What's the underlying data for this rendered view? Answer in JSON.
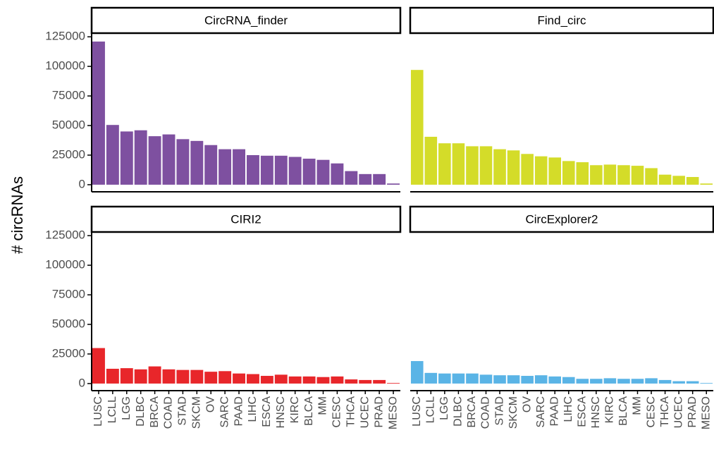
{
  "y_label": "# circRNAs",
  "categories": [
    "LUSC",
    "LCLL",
    "LGG",
    "DLBC",
    "BRCA",
    "COAD",
    "STAD",
    "SKCM",
    "OV",
    "SARC",
    "PAAD",
    "LIHC",
    "ESCA",
    "HNSC",
    "KIRC",
    "BLCA",
    "MM",
    "CESC",
    "THCA",
    "UCEC",
    "PRAD",
    "MESO"
  ],
  "ylim": [
    -6000,
    127500
  ],
  "yticks": [
    0,
    25000,
    50000,
    75000,
    100000,
    125000
  ],
  "chart_data": [
    {
      "type": "bar",
      "title": "CircRNA_finder",
      "color": "#7e50a0",
      "values": [
        121000,
        50500,
        45000,
        46000,
        41000,
        42500,
        38500,
        37000,
        33500,
        30000,
        30000,
        25000,
        24500,
        24500,
        23500,
        22000,
        21000,
        18000,
        11500,
        9000,
        9000,
        1000
      ]
    },
    {
      "type": "bar",
      "title": "Find_circ",
      "color": "#d4dc29",
      "values": [
        97000,
        40500,
        35000,
        35000,
        32500,
        32500,
        30000,
        29000,
        26000,
        24000,
        23000,
        20000,
        19000,
        16500,
        17000,
        16500,
        16000,
        14000,
        8500,
        7500,
        6500,
        1000
      ]
    },
    {
      "type": "bar",
      "title": "CIRI2",
      "color": "#e8262a",
      "values": [
        30000,
        12500,
        13000,
        12000,
        14500,
        12000,
        11500,
        11500,
        10000,
        10500,
        8500,
        8000,
        6500,
        7500,
        6000,
        6000,
        5500,
        6000,
        3500,
        3000,
        3000,
        500
      ]
    },
    {
      "type": "bar",
      "title": "CircExplorer2",
      "color": "#5ab4e6",
      "values": [
        19000,
        9000,
        8500,
        8500,
        8500,
        7500,
        7000,
        7000,
        6500,
        7000,
        6000,
        5500,
        4000,
        4000,
        4500,
        4000,
        4000,
        4500,
        3000,
        2000,
        2000,
        500
      ]
    }
  ]
}
